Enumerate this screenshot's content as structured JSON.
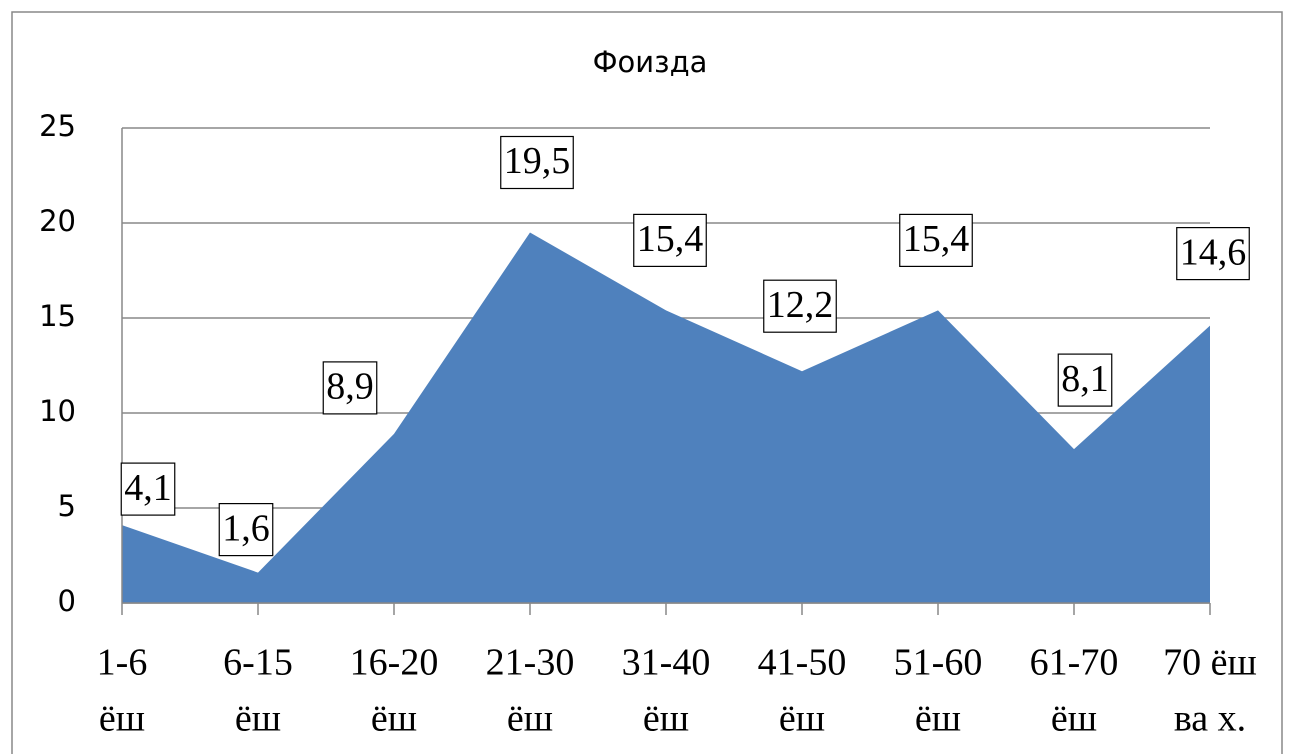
{
  "chart_data": {
    "type": "area",
    "title": "Фоизда",
    "categories": [
      [
        "1-6",
        "ёш"
      ],
      [
        "6-15",
        "ёш"
      ],
      [
        "16-20",
        "ёш"
      ],
      [
        "21-30",
        "ёш"
      ],
      [
        "31-40",
        "ёш"
      ],
      [
        "41-50",
        "ёш"
      ],
      [
        "51-60",
        "ёш"
      ],
      [
        "61-70",
        "ёш"
      ],
      [
        "70 ёш",
        "ва х."
      ]
    ],
    "values": [
      4.1,
      1.6,
      8.9,
      19.5,
      15.4,
      12.2,
      15.4,
      8.1,
      14.6
    ],
    "value_labels": [
      "4,1",
      "1,6",
      "8,9",
      "19,5",
      "15,4",
      "12,2",
      "15,4",
      "8,1",
      "14,6"
    ],
    "color": "#4f81bd",
    "ylim": [
      0,
      25
    ],
    "yticks": [
      0,
      5,
      10,
      15,
      20,
      25
    ],
    "grid": true
  }
}
